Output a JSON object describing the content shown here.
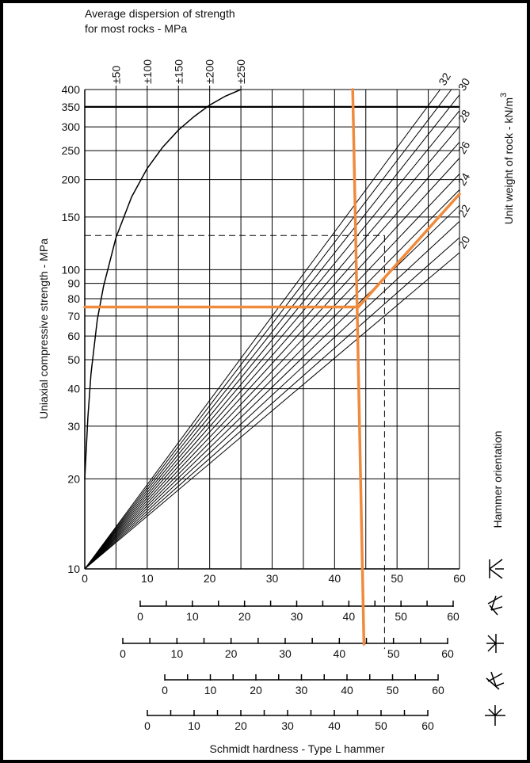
{
  "chart_data": {
    "type": "nomogram",
    "top_label_lines": [
      "Average dispersion of strength",
      "for most rocks - MPa"
    ],
    "y_label": "Uniaxial compressive strength - MPa",
    "y2_label": "Unit weight  of  rock - kN/m",
    "y2_label_superscript": "3",
    "x_label": "Schmidt hardness - Type L hammer",
    "orientation_label": "Hammer orientation",
    "log_y": true,
    "xlim": [
      0,
      60
    ],
    "ylim": [
      10,
      400
    ],
    "xticks": [
      0,
      10,
      20,
      30,
      40,
      50,
      60
    ],
    "xminor_ticks": [
      5,
      15,
      25,
      35,
      45,
      55
    ],
    "yticks": [
      10,
      20,
      30,
      40,
      50,
      60,
      70,
      80,
      90,
      100,
      150,
      200,
      250,
      300,
      350,
      400
    ],
    "bold_gridline": 350,
    "dispersion_curve": {
      "color": "#000000",
      "x": [
        0,
        0.5,
        1,
        2,
        3,
        5,
        7.5,
        10,
        12.5,
        15,
        17.5,
        20,
        22.5,
        25
      ],
      "values": [
        20,
        32,
        45,
        68,
        88,
        128,
        175,
        218,
        257,
        293,
        325,
        355,
        380,
        400
      ]
    },
    "dispersion_ticks": [
      {
        "value": 5,
        "label": "±50"
      },
      {
        "value": 10,
        "label": "±100"
      },
      {
        "value": 15,
        "label": "±150"
      },
      {
        "value": 20,
        "label": "±200"
      },
      {
        "value": 25,
        "label": "±250"
      }
    ],
    "unit_weight_lines": [
      {
        "name": "20",
        "x": [
          0,
          60
        ],
        "values": [
          10,
          114
        ]
      },
      {
        "x": [
          0,
          60
        ],
        "values": [
          10,
          128
        ]
      },
      {
        "name": "22",
        "x": [
          0,
          60
        ],
        "values": [
          10,
          145
        ]
      },
      {
        "x": [
          0,
          60
        ],
        "values": [
          10,
          164
        ]
      },
      {
        "name": "24",
        "x": [
          0,
          60
        ],
        "values": [
          10,
          185
        ]
      },
      {
        "x": [
          0,
          60
        ],
        "values": [
          10,
          209
        ]
      },
      {
        "name": "26",
        "x": [
          0,
          60
        ],
        "values": [
          10,
          236
        ]
      },
      {
        "x": [
          0,
          60
        ],
        "values": [
          10,
          267
        ]
      },
      {
        "name": "28",
        "x": [
          0,
          60
        ],
        "values": [
          10,
          301
        ]
      },
      {
        "x": [
          0,
          60
        ],
        "values": [
          10,
          340
        ]
      },
      {
        "name": "30",
        "x": [
          0,
          60
        ],
        "values": [
          10,
          384
        ]
      },
      {
        "x": [
          0,
          58.7
        ],
        "values": [
          10,
          400
        ]
      },
      {
        "name": "32",
        "x": [
          0,
          56.9
        ],
        "values": [
          10,
          400
        ]
      }
    ],
    "annotation_lines": {
      "color": "#f08a3c",
      "segments": [
        {
          "x": [
            0,
            43.8
          ],
          "values": [
            75,
            75
          ]
        },
        {
          "x": [
            43.8,
            60
          ],
          "values": [
            75,
            179
          ]
        },
        {
          "x": [
            42.9,
            44.7
          ],
          "values": [
            400,
            5.6
          ]
        }
      ]
    },
    "dashed_lines": {
      "color": "#000000",
      "segments": [
        {
          "x": [
            0,
            48
          ],
          "values": [
            130,
            130
          ]
        },
        {
          "x": [
            48,
            48
          ],
          "values": [
            130,
            5.4
          ]
        }
      ]
    },
    "hammer_scales": [
      {
        "ticks": [
          0,
          10,
          20,
          30,
          40,
          50,
          60
        ],
        "minor_ticks": [
          5,
          15,
          25,
          35,
          45,
          55
        ]
      },
      {
        "ticks": [
          0,
          10,
          20,
          30,
          40,
          50,
          60
        ],
        "minor_ticks": [
          5,
          15,
          25,
          35,
          45,
          55
        ]
      },
      {
        "ticks": [
          0,
          10,
          20,
          30,
          40,
          50,
          60
        ],
        "minor_ticks": [
          5,
          15,
          25,
          35,
          45,
          55
        ]
      },
      {
        "ticks": [
          0,
          10,
          20,
          30,
          40,
          50,
          60
        ],
        "minor_ticks": [
          5,
          15,
          25,
          35,
          45,
          55
        ]
      }
    ]
  }
}
